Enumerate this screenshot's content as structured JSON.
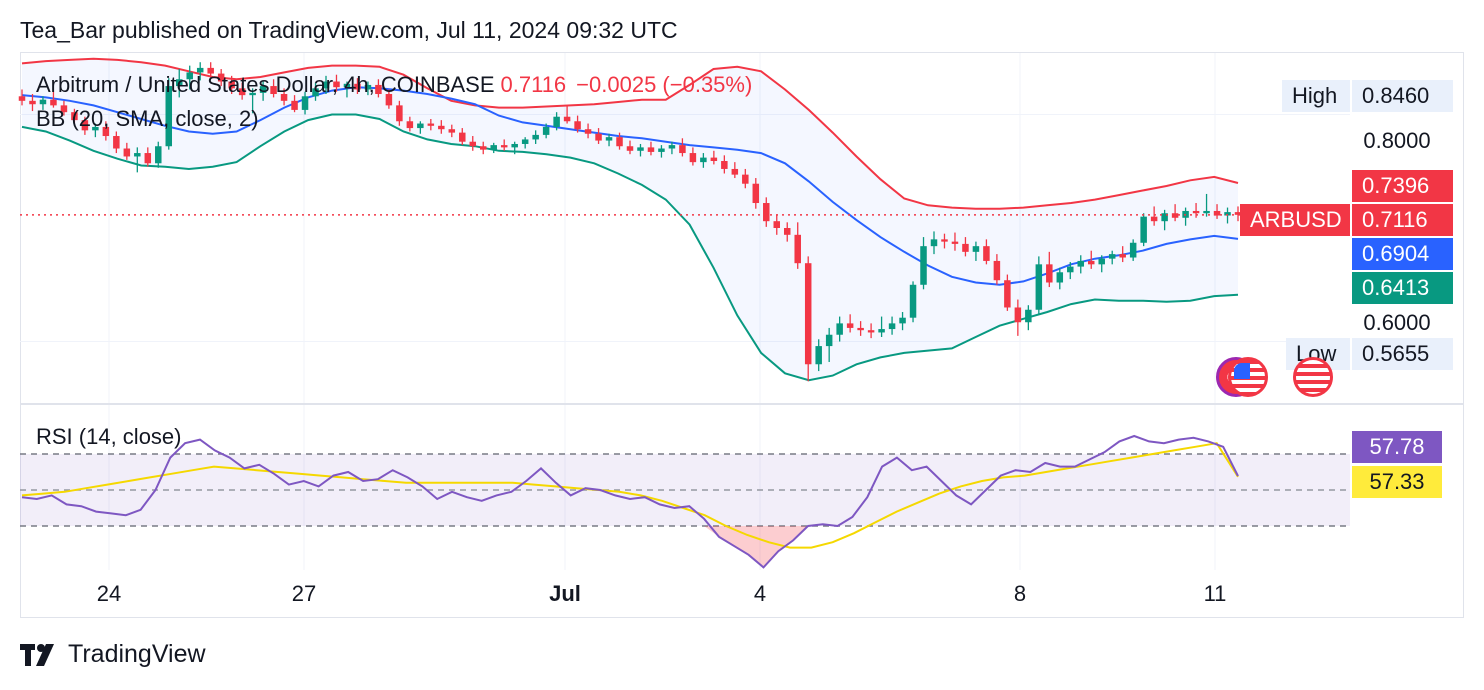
{
  "header": {
    "published": "Tea_Bar published on TradingView.com, Jul 11, 2024 09:32 UTC"
  },
  "legend": {
    "symbol": "Arbitrum / United States Dollar, 4h, COINBASE",
    "price": "0.7116",
    "change": "−0.0025 (−0.35%)",
    "bb": "BB (20, SMA, close, 2)",
    "rsi": "RSI (14, close)"
  },
  "price_axis": {
    "high_label": "High",
    "high_value": "0.8460",
    "low_label": "Low",
    "low_value": "0.5655",
    "ticks": [
      "0.8000",
      "0.6000"
    ],
    "bb_upper": "0.7396",
    "last_symbol": "ARBUSD",
    "last_price": "0.7116",
    "bb_basis": "0.6904",
    "bb_lower": "0.6413",
    "rsi_value": "57.78",
    "rsi_ma": "57.33"
  },
  "time_axis": [
    "24",
    "27",
    "Jul",
    "4",
    "8",
    "11"
  ],
  "footer": {
    "brand": "TradingView"
  },
  "colors": {
    "up": "#089981",
    "down": "#f23645",
    "bb_basis": "#2962ff",
    "bb_upper": "#f23645",
    "bb_lower": "#089981",
    "rsi": "#7e57c2",
    "rsi_ma": "#ffeb3b"
  },
  "icons": [
    "us-flag-icon",
    "us-flag-icon",
    "us-flag-icon",
    "tradingview-logo-icon"
  ],
  "chart_data": {
    "type": "candlestick",
    "title": "Arbitrum / United States Dollar, 4h, COINBASE",
    "interval": "4h",
    "start": "2024-06-22T20:00",
    "ylim": [
      0.545,
      0.855
    ],
    "yticks": [
      0.6,
      0.8
    ],
    "xlabels": [
      "24",
      "27",
      "Jul",
      "4",
      "8",
      "11"
    ],
    "ohlc": [
      [
        0.816,
        0.822,
        0.808,
        0.812
      ],
      [
        0.812,
        0.818,
        0.803,
        0.809
      ],
      [
        0.809,
        0.816,
        0.804,
        0.813
      ],
      [
        0.813,
        0.82,
        0.806,
        0.808
      ],
      [
        0.808,
        0.812,
        0.799,
        0.802
      ],
      [
        0.802,
        0.805,
        0.792,
        0.795
      ],
      [
        0.795,
        0.798,
        0.782,
        0.786
      ],
      [
        0.786,
        0.792,
        0.78,
        0.789
      ],
      [
        0.789,
        0.794,
        0.777,
        0.781
      ],
      [
        0.781,
        0.785,
        0.766,
        0.77
      ],
      [
        0.77,
        0.775,
        0.76,
        0.763
      ],
      [
        0.763,
        0.771,
        0.749,
        0.766
      ],
      [
        0.766,
        0.771,
        0.754,
        0.757
      ],
      [
        0.757,
        0.776,
        0.753,
        0.772
      ],
      [
        0.772,
        0.832,
        0.769,
        0.825
      ],
      [
        0.825,
        0.84,
        0.815,
        0.831
      ],
      [
        0.831,
        0.843,
        0.822,
        0.837
      ],
      [
        0.837,
        0.846,
        0.83,
        0.841
      ],
      [
        0.841,
        0.846,
        0.833,
        0.836
      ],
      [
        0.836,
        0.84,
        0.825,
        0.829
      ],
      [
        0.829,
        0.834,
        0.818,
        0.823
      ],
      [
        0.823,
        0.828,
        0.813,
        0.817
      ],
      [
        0.817,
        0.823,
        0.801,
        0.819
      ],
      [
        0.819,
        0.829,
        0.812,
        0.825
      ],
      [
        0.825,
        0.831,
        0.815,
        0.818
      ],
      [
        0.818,
        0.823,
        0.808,
        0.812
      ],
      [
        0.812,
        0.817,
        0.802,
        0.804
      ],
      [
        0.804,
        0.82,
        0.8,
        0.816
      ],
      [
        0.816,
        0.828,
        0.812,
        0.823
      ],
      [
        0.823,
        0.834,
        0.818,
        0.829
      ],
      [
        0.829,
        0.835,
        0.82,
        0.824
      ],
      [
        0.824,
        0.829,
        0.815,
        0.827
      ],
      [
        0.827,
        0.832,
        0.818,
        0.822
      ],
      [
        0.822,
        0.829,
        0.817,
        0.826
      ],
      [
        0.826,
        0.831,
        0.815,
        0.818
      ],
      [
        0.818,
        0.822,
        0.805,
        0.808
      ],
      [
        0.808,
        0.812,
        0.79,
        0.794
      ],
      [
        0.794,
        0.798,
        0.785,
        0.788
      ],
      [
        0.788,
        0.794,
        0.783,
        0.792
      ],
      [
        0.792,
        0.796,
        0.786,
        0.79
      ],
      [
        0.79,
        0.795,
        0.783,
        0.787
      ],
      [
        0.787,
        0.791,
        0.78,
        0.784
      ],
      [
        0.784,
        0.788,
        0.773,
        0.776
      ],
      [
        0.776,
        0.781,
        0.768,
        0.772
      ],
      [
        0.772,
        0.776,
        0.765,
        0.769
      ],
      [
        0.769,
        0.775,
        0.766,
        0.773
      ],
      [
        0.773,
        0.778,
        0.768,
        0.771
      ],
      [
        0.771,
        0.776,
        0.765,
        0.774
      ],
      [
        0.774,
        0.78,
        0.77,
        0.778
      ],
      [
        0.778,
        0.786,
        0.774,
        0.782
      ],
      [
        0.782,
        0.792,
        0.779,
        0.789
      ],
      [
        0.789,
        0.802,
        0.786,
        0.798
      ],
      [
        0.798,
        0.808,
        0.792,
        0.794
      ],
      [
        0.794,
        0.799,
        0.784,
        0.787
      ],
      [
        0.787,
        0.792,
        0.779,
        0.783
      ],
      [
        0.783,
        0.788,
        0.774,
        0.777
      ],
      [
        0.777,
        0.783,
        0.772,
        0.78
      ],
      [
        0.78,
        0.784,
        0.769,
        0.772
      ],
      [
        0.772,
        0.777,
        0.765,
        0.768
      ],
      [
        0.768,
        0.774,
        0.763,
        0.771
      ],
      [
        0.771,
        0.776,
        0.764,
        0.767
      ],
      [
        0.767,
        0.773,
        0.762,
        0.77
      ],
      [
        0.77,
        0.776,
        0.765,
        0.773
      ],
      [
        0.773,
        0.779,
        0.763,
        0.766
      ],
      [
        0.766,
        0.771,
        0.755,
        0.758
      ],
      [
        0.758,
        0.766,
        0.753,
        0.762
      ],
      [
        0.762,
        0.768,
        0.756,
        0.759
      ],
      [
        0.759,
        0.764,
        0.748,
        0.752
      ],
      [
        0.752,
        0.758,
        0.744,
        0.747
      ],
      [
        0.747,
        0.752,
        0.735,
        0.739
      ],
      [
        0.739,
        0.744,
        0.717,
        0.722
      ],
      [
        0.722,
        0.727,
        0.701,
        0.706
      ],
      [
        0.706,
        0.712,
        0.694,
        0.7
      ],
      [
        0.7,
        0.705,
        0.688,
        0.694
      ],
      [
        0.694,
        0.705,
        0.664,
        0.669
      ],
      [
        0.669,
        0.675,
        0.565,
        0.58
      ],
      [
        0.58,
        0.602,
        0.574,
        0.596
      ],
      [
        0.596,
        0.612,
        0.582,
        0.606
      ],
      [
        0.606,
        0.622,
        0.6,
        0.616
      ],
      [
        0.616,
        0.624,
        0.608,
        0.612
      ],
      [
        0.612,
        0.618,
        0.605,
        0.61
      ],
      [
        0.61,
        0.616,
        0.603,
        0.608
      ],
      [
        0.608,
        0.622,
        0.604,
        0.611
      ],
      [
        0.611,
        0.622,
        0.606,
        0.616
      ],
      [
        0.616,
        0.626,
        0.61,
        0.621
      ],
      [
        0.621,
        0.653,
        0.617,
        0.65
      ],
      [
        0.65,
        0.692,
        0.646,
        0.684
      ],
      [
        0.684,
        0.697,
        0.677,
        0.69
      ],
      [
        0.69,
        0.695,
        0.682,
        0.688
      ],
      [
        0.688,
        0.696,
        0.68,
        0.686
      ],
      [
        0.686,
        0.692,
        0.675,
        0.679
      ],
      [
        0.679,
        0.688,
        0.671,
        0.684
      ],
      [
        0.684,
        0.69,
        0.668,
        0.671
      ],
      [
        0.671,
        0.677,
        0.65,
        0.654
      ],
      [
        0.654,
        0.659,
        0.627,
        0.63
      ],
      [
        0.63,
        0.637,
        0.605,
        0.617
      ],
      [
        0.617,
        0.632,
        0.61,
        0.628
      ],
      [
        0.628,
        0.675,
        0.624,
        0.668
      ],
      [
        0.668,
        0.679,
        0.648,
        0.652
      ],
      [
        0.652,
        0.665,
        0.646,
        0.661
      ],
      [
        0.661,
        0.67,
        0.655,
        0.666
      ],
      [
        0.666,
        0.676,
        0.66,
        0.671
      ],
      [
        0.671,
        0.68,
        0.664,
        0.668
      ],
      [
        0.668,
        0.676,
        0.661,
        0.673
      ],
      [
        0.673,
        0.68,
        0.668,
        0.677
      ],
      [
        0.677,
        0.684,
        0.67,
        0.674
      ],
      [
        0.674,
        0.69,
        0.671,
        0.687
      ],
      [
        0.687,
        0.713,
        0.684,
        0.71
      ],
      [
        0.71,
        0.719,
        0.702,
        0.706
      ],
      [
        0.706,
        0.716,
        0.698,
        0.713
      ],
      [
        0.713,
        0.721,
        0.706,
        0.709
      ],
      [
        0.709,
        0.718,
        0.702,
        0.715
      ],
      [
        0.715,
        0.722,
        0.709,
        0.713
      ],
      [
        0.713,
        0.73,
        0.71,
        0.715
      ],
      [
        0.715,
        0.721,
        0.708,
        0.711
      ],
      [
        0.711,
        0.718,
        0.704,
        0.714
      ],
      [
        0.714,
        0.719,
        0.706,
        0.7116
      ]
    ],
    "bb": {
      "basis": [
        0.817,
        0.815,
        0.812,
        0.808,
        0.802,
        0.796,
        0.79,
        0.785,
        0.783,
        0.785,
        0.795,
        0.806,
        0.815,
        0.821,
        0.824,
        0.823,
        0.821,
        0.818,
        0.814,
        0.809,
        0.799,
        0.793,
        0.79,
        0.787,
        0.784,
        0.781,
        0.779,
        0.776,
        0.773,
        0.771,
        0.769,
        0.766,
        0.757,
        0.741,
        0.723,
        0.707,
        0.692,
        0.679,
        0.667,
        0.657,
        0.652,
        0.65,
        0.653,
        0.66,
        0.668,
        0.673,
        0.676,
        0.68,
        0.686,
        0.69,
        0.693,
        0.6904
      ],
      "upper": [
        0.845,
        0.847,
        0.848,
        0.849,
        0.848,
        0.846,
        0.843,
        0.838,
        0.833,
        0.831,
        0.833,
        0.837,
        0.841,
        0.843,
        0.843,
        0.842,
        0.835,
        0.823,
        0.812,
        0.808,
        0.806,
        0.806,
        0.807,
        0.808,
        0.809,
        0.811,
        0.813,
        0.813,
        0.826,
        0.84,
        0.842,
        0.838,
        0.822,
        0.804,
        0.784,
        0.763,
        0.743,
        0.726,
        0.72,
        0.718,
        0.717,
        0.717,
        0.718,
        0.72,
        0.722,
        0.725,
        0.729,
        0.733,
        0.737,
        0.742,
        0.745,
        0.7396
      ],
      "lower": [
        0.789,
        0.785,
        0.777,
        0.768,
        0.761,
        0.755,
        0.754,
        0.752,
        0.754,
        0.758,
        0.772,
        0.785,
        0.795,
        0.8,
        0.8,
        0.796,
        0.785,
        0.778,
        0.774,
        0.772,
        0.768,
        0.767,
        0.765,
        0.762,
        0.757,
        0.748,
        0.738,
        0.725,
        0.703,
        0.665,
        0.623,
        0.59,
        0.572,
        0.566,
        0.57,
        0.58,
        0.586,
        0.59,
        0.592,
        0.594,
        0.604,
        0.614,
        0.62,
        0.626,
        0.633,
        0.637,
        0.636,
        0.636,
        0.635,
        0.636,
        0.64,
        0.6413
      ]
    },
    "rsi": {
      "values": [
        46,
        45,
        47,
        42,
        41,
        38,
        37,
        36,
        39,
        50,
        68,
        76,
        78,
        72,
        68,
        62,
        64,
        59,
        53,
        55,
        52,
        58,
        60,
        55,
        56,
        61,
        57,
        52,
        45,
        49,
        46,
        44,
        47,
        49,
        55,
        62,
        54,
        47,
        51,
        50,
        47,
        45,
        46,
        42,
        40,
        41,
        34,
        24,
        19,
        14,
        7,
        16,
        22,
        30,
        31,
        30,
        35,
        46,
        63,
        68,
        61,
        63,
        55,
        47,
        42,
        50,
        58,
        61,
        60,
        65,
        63,
        63,
        67,
        71,
        77,
        80,
        77,
        76,
        78,
        79,
        77,
        74,
        57.78
      ],
      "ma": [
        47,
        48,
        49,
        51,
        53,
        55,
        57,
        59,
        61,
        63,
        62,
        61,
        60,
        59,
        58,
        57,
        56,
        55,
        54,
        54,
        54,
        54,
        54,
        54,
        53,
        52,
        51,
        50,
        49,
        47,
        44,
        40,
        36,
        30,
        25,
        21,
        18,
        18,
        21,
        26,
        32,
        38,
        43,
        48,
        52,
        55,
        57,
        58,
        60,
        62,
        64,
        66,
        68,
        70,
        72,
        74,
        76,
        57.33
      ],
      "overbought": 70,
      "middle": 50,
      "oversold": 30
    }
  }
}
